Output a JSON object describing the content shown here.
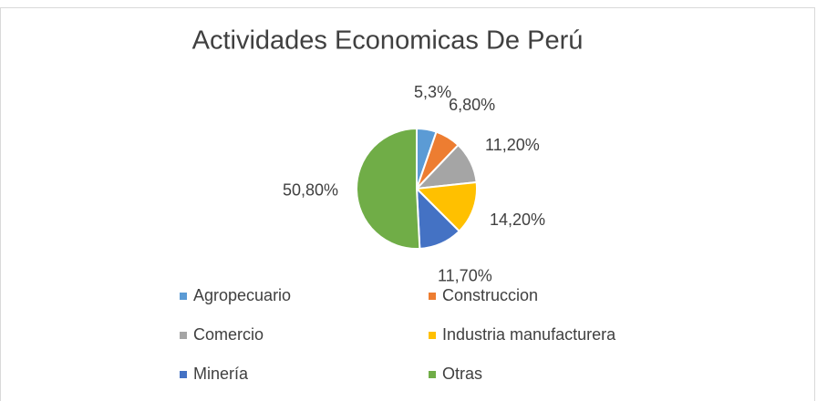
{
  "chart_data": {
    "type": "pie",
    "title": "Actividades Economicas De Perú",
    "categories": [
      "Agropecuario",
      "Construccion",
      "Comercio",
      "Industria manufacturera",
      "Minería",
      "Otras"
    ],
    "values": [
      5.3,
      6.8,
      11.2,
      14.2,
      11.7,
      50.8
    ],
    "value_labels": [
      "5,3%",
      "6,80%",
      "11,20%",
      "14,20%",
      "11,70%",
      "50,80%"
    ],
    "colors": [
      "#5b9bd5",
      "#ed7d31",
      "#a5a5a5",
      "#ffc000",
      "#4472c4",
      "#70ad47"
    ],
    "legend": "bottom"
  }
}
